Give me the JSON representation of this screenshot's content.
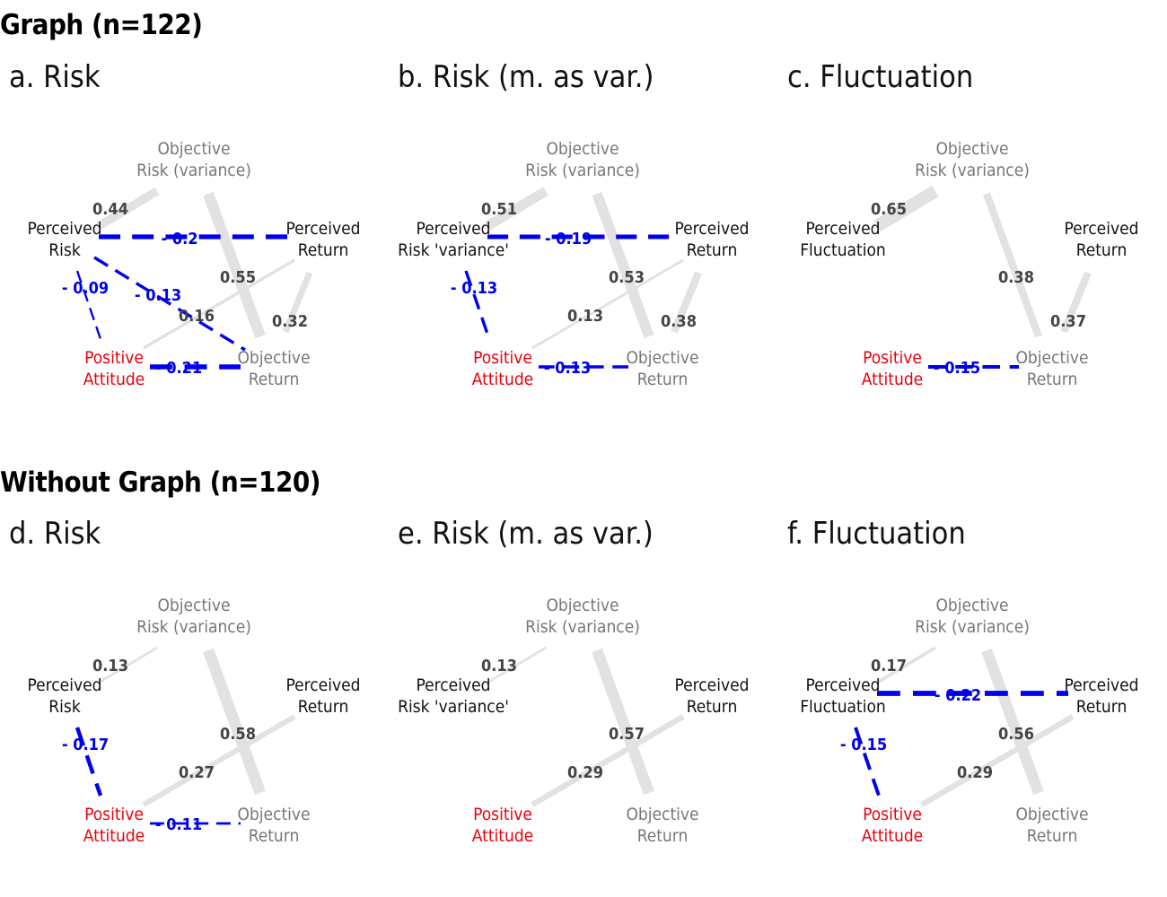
{
  "sections": [
    {
      "title": "Graph (n=122)",
      "panels": [
        {
          "title": "a. Risk",
          "node_labels": {
            "or": [
              "Objective",
              "Risk (variance)"
            ],
            "pr": [
              "Perceived",
              "Risk"
            ],
            "pret": [
              "Perceived",
              "Return"
            ],
            "pa": [
              "Positive",
              "Attitude"
            ],
            "oret": [
              "Objective",
              "Return"
            ]
          },
          "edges": [
            {
              "from": "or",
              "to": "pr",
              "value": "0.44",
              "sign": "pos",
              "weight": 0.44
            },
            {
              "from": "or",
              "to": "oret",
              "value": "0.55",
              "sign": "pos",
              "weight": 0.55
            },
            {
              "from": "pret",
              "to": "oret",
              "value": "0.32",
              "sign": "pos",
              "weight": 0.32
            },
            {
              "from": "pa",
              "to": "pret",
              "value": "0.16",
              "sign": "pos",
              "weight": 0.16
            },
            {
              "from": "pr",
              "to": "pret",
              "value": "- 0.2",
              "sign": "neg",
              "weight": 0.2
            },
            {
              "from": "pr",
              "to": "oret",
              "value": "- 0.13",
              "sign": "neg",
              "weight": 0.13
            },
            {
              "from": "pr",
              "to": "pa",
              "value": "- 0.09",
              "sign": "neg",
              "weight": 0.09
            },
            {
              "from": "pa",
              "to": "oret",
              "value": "- 0.21",
              "sign": "neg",
              "weight": 0.21
            }
          ]
        },
        {
          "title": "b. Risk (m. as var.)",
          "node_labels": {
            "or": [
              "Objective",
              "Risk (variance)"
            ],
            "pr": [
              "Perceived",
              "Risk 'variance'"
            ],
            "pret": [
              "Perceived",
              "Return"
            ],
            "pa": [
              "Positive",
              "Attitude"
            ],
            "oret": [
              "Objective",
              "Return"
            ]
          },
          "edges": [
            {
              "from": "or",
              "to": "pr",
              "value": "0.51",
              "sign": "pos",
              "weight": 0.51
            },
            {
              "from": "or",
              "to": "oret",
              "value": "0.53",
              "sign": "pos",
              "weight": 0.53
            },
            {
              "from": "pret",
              "to": "oret",
              "value": "0.38",
              "sign": "pos",
              "weight": 0.38
            },
            {
              "from": "pa",
              "to": "pret",
              "value": "0.13",
              "sign": "pos",
              "weight": 0.13
            },
            {
              "from": "pr",
              "to": "pret",
              "value": "- 0.19",
              "sign": "neg",
              "weight": 0.19
            },
            {
              "from": "pr",
              "to": "pa",
              "value": "- 0.13",
              "sign": "neg",
              "weight": 0.13
            },
            {
              "from": "pa",
              "to": "oret",
              "value": "- 0.13",
              "sign": "neg",
              "weight": 0.13
            }
          ]
        },
        {
          "title": "c. Fluctuation",
          "node_labels": {
            "or": [
              "Objective",
              "Risk (variance)"
            ],
            "pr": [
              "Perceived",
              "Fluctuation"
            ],
            "pret": [
              "Perceived",
              "Return"
            ],
            "pa": [
              "Positive",
              "Attitude"
            ],
            "oret": [
              "Objective",
              "Return"
            ]
          },
          "edges": [
            {
              "from": "or",
              "to": "pr",
              "value": "0.65",
              "sign": "pos",
              "weight": 0.65
            },
            {
              "from": "or",
              "to": "oret",
              "value": "0.38",
              "sign": "pos",
              "weight": 0.38
            },
            {
              "from": "pret",
              "to": "oret",
              "value": "0.37",
              "sign": "pos",
              "weight": 0.37
            },
            {
              "from": "pa",
              "to": "oret",
              "value": "- 0.15",
              "sign": "neg",
              "weight": 0.15
            }
          ]
        }
      ]
    },
    {
      "title": "Without Graph (n=120)",
      "panels": [
        {
          "title": "d. Risk",
          "node_labels": {
            "or": [
              "Objective",
              "Risk (variance)"
            ],
            "pr": [
              "Perceived",
              "Risk"
            ],
            "pret": [
              "Perceived",
              "Return"
            ],
            "pa": [
              "Positive",
              "Attitude"
            ],
            "oret": [
              "Objective",
              "Return"
            ]
          },
          "edges": [
            {
              "from": "or",
              "to": "pr",
              "value": "0.13",
              "sign": "pos",
              "weight": 0.13
            },
            {
              "from": "or",
              "to": "oret",
              "value": "0.58",
              "sign": "pos",
              "weight": 0.58
            },
            {
              "from": "pa",
              "to": "pret",
              "value": "0.27",
              "sign": "pos",
              "weight": 0.27
            },
            {
              "from": "pr",
              "to": "pa",
              "value": "- 0.17",
              "sign": "neg",
              "weight": 0.17
            },
            {
              "from": "pa",
              "to": "oret",
              "value": "- 0.11",
              "sign": "neg",
              "weight": 0.11
            }
          ]
        },
        {
          "title": "e. Risk (m. as var.)",
          "node_labels": {
            "or": [
              "Objective",
              "Risk (variance)"
            ],
            "pr": [
              "Perceived",
              "Risk 'variance'"
            ],
            "pret": [
              "Perceived",
              "Return"
            ],
            "pa": [
              "Positive",
              "Attitude"
            ],
            "oret": [
              "Objective",
              "Return"
            ]
          },
          "edges": [
            {
              "from": "or",
              "to": "pr",
              "value": "0.13",
              "sign": "pos",
              "weight": 0.13
            },
            {
              "from": "or",
              "to": "oret",
              "value": "0.57",
              "sign": "pos",
              "weight": 0.57
            },
            {
              "from": "pa",
              "to": "pret",
              "value": "0.29",
              "sign": "pos",
              "weight": 0.29
            }
          ]
        },
        {
          "title": "f. Fluctuation",
          "node_labels": {
            "or": [
              "Objective",
              "Risk (variance)"
            ],
            "pr": [
              "Perceived",
              "Fluctuation"
            ],
            "pret": [
              "Perceived",
              "Return"
            ],
            "pa": [
              "Positive",
              "Attitude"
            ],
            "oret": [
              "Objective",
              "Return"
            ]
          },
          "edges": [
            {
              "from": "or",
              "to": "pr",
              "value": "0.17",
              "sign": "pos",
              "weight": 0.17
            },
            {
              "from": "or",
              "to": "oret",
              "value": "0.56",
              "sign": "pos",
              "weight": 0.56
            },
            {
              "from": "pa",
              "to": "pret",
              "value": "0.29",
              "sign": "pos",
              "weight": 0.29
            },
            {
              "from": "pr",
              "to": "pret",
              "value": "- 0.22",
              "sign": "neg",
              "weight": 0.22
            },
            {
              "from": "pr",
              "to": "pa",
              "value": "- 0.15",
              "sign": "neg",
              "weight": 0.15
            }
          ]
        }
      ]
    }
  ],
  "colors": {
    "positive_edge": "#e2e2e2",
    "negative_edge": "#0000ee",
    "positive_label": "#444444",
    "negative_label": "#0000ee",
    "attitude_node": "#e8000b",
    "objective_node": "#777777",
    "perceived_node": "#111111"
  }
}
